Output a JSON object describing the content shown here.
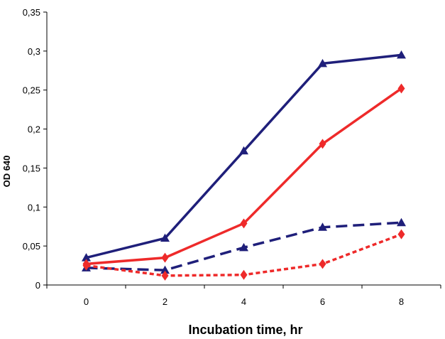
{
  "chart_data": {
    "type": "line",
    "title": "",
    "xlabel": "Incubation time, hr",
    "ylabel": "OD 640",
    "x": [
      0,
      2,
      4,
      6,
      8
    ],
    "xticks": [
      "0",
      "2",
      "4",
      "6",
      "8"
    ],
    "xlim": [
      -1,
      9
    ],
    "yticks": [
      "0",
      "0,05",
      "0,1",
      "0,15",
      "0,2",
      "0,25",
      "0,3",
      "0,35"
    ],
    "ylim": [
      0,
      0.35
    ],
    "grid": false,
    "legend": "none",
    "series": [
      {
        "color": "#1f1f7a",
        "style": "solid",
        "marker": "triangle",
        "values": [
          0.035,
          0.06,
          0.172,
          0.284,
          0.295
        ]
      },
      {
        "color": "#ee2a2a",
        "style": "solid",
        "marker": "diamond",
        "values": [
          0.027,
          0.035,
          0.079,
          0.181,
          0.252
        ]
      },
      {
        "color": "#1f1f7a",
        "style": "dashed",
        "marker": "triangle",
        "values": [
          0.022,
          0.019,
          0.048,
          0.074,
          0.08
        ]
      },
      {
        "color": "#ee2a2a",
        "style": "dotted",
        "marker": "diamond",
        "values": [
          0.025,
          0.012,
          0.013,
          0.027,
          0.065
        ]
      }
    ]
  }
}
